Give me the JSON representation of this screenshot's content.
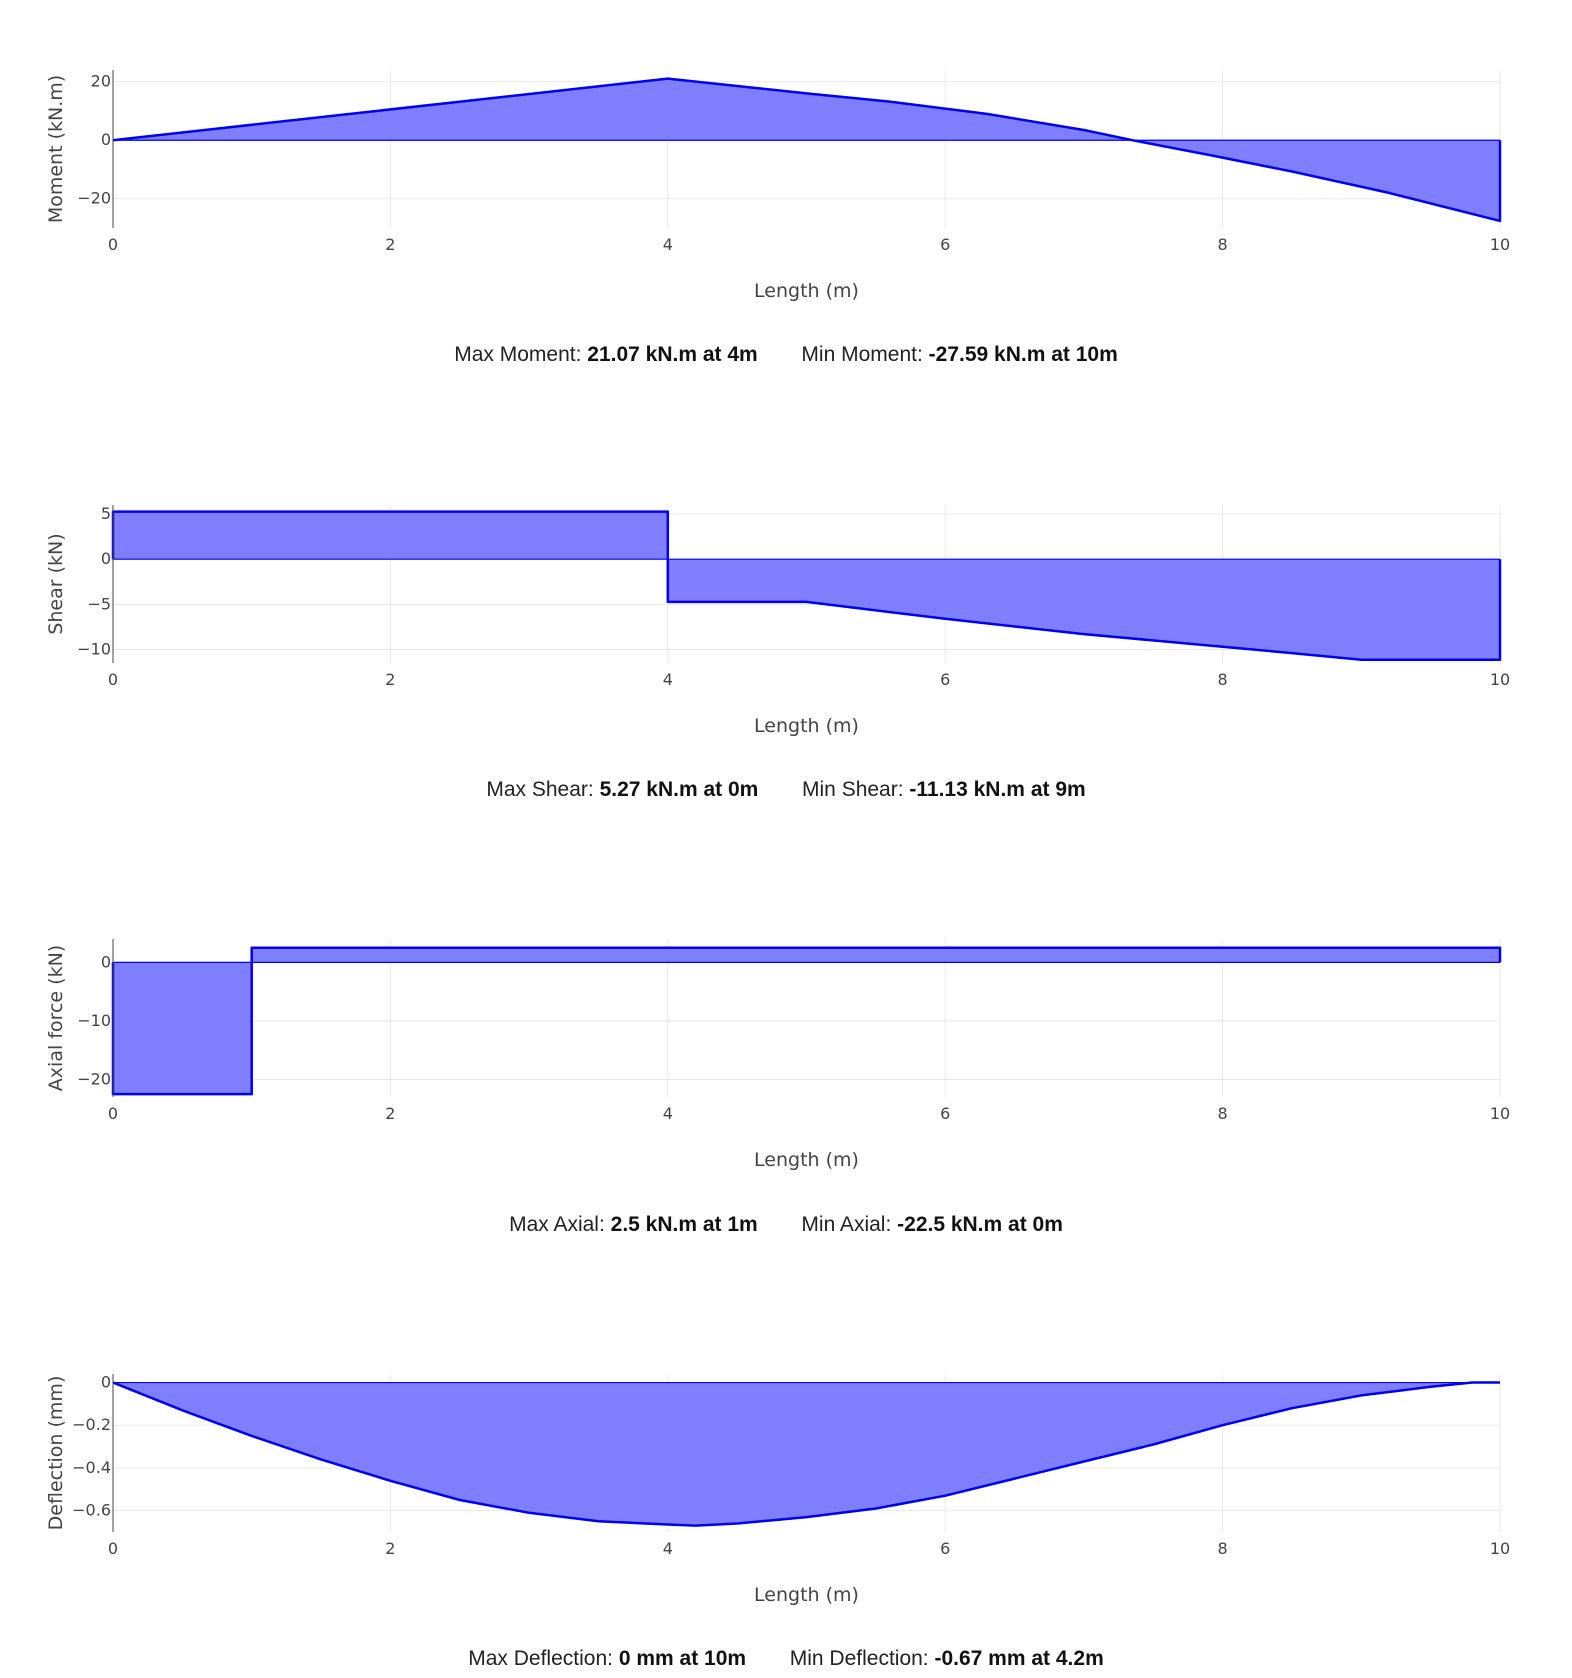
{
  "colors": {
    "fill": "#7f7ffe",
    "line": "#0000ee",
    "grid": "#e8e8e8",
    "axis": "#444444",
    "text": "#444444"
  },
  "chart_data": [
    {
      "type": "area",
      "xlabel": "Length (m)",
      "ylabel": "Moment (kN.m)",
      "xlim": [
        0,
        10
      ],
      "ylim": [
        -30,
        24
      ],
      "xticks": [
        0,
        2,
        4,
        6,
        8,
        10
      ],
      "yticks": [
        -20,
        0,
        20
      ],
      "grid": true,
      "x": [
        0,
        4,
        5,
        5.6,
        6.3,
        7,
        7.35,
        7.9,
        8.5,
        9.2,
        10
      ],
      "y": [
        0,
        21.07,
        16,
        13.2,
        9,
        3.5,
        0,
        -5,
        -10.7,
        -18,
        -27.59
      ],
      "summary": {
        "max_label": "Max Moment:",
        "max_value": "21.07 kN.m at 4m",
        "min_label": "Min Moment:",
        "min_value": "-27.59 kN.m at 10m"
      }
    },
    {
      "type": "area",
      "xlabel": "Length (m)",
      "ylabel": "Shear (kN)",
      "xlim": [
        0,
        10
      ],
      "ylim": [
        -11.5,
        6
      ],
      "xticks": [
        0,
        2,
        4,
        6,
        8,
        10
      ],
      "yticks": [
        -10,
        -5,
        0,
        5
      ],
      "grid": true,
      "x": [
        0,
        4,
        4,
        5,
        6,
        7,
        8,
        8.5,
        9,
        10
      ],
      "y": [
        5.27,
        5.27,
        -4.73,
        -4.73,
        -6.6,
        -8.3,
        -9.7,
        -10.4,
        -11.13,
        -11.13
      ],
      "summary": {
        "max_label": "Max Shear:",
        "max_value": "5.27 kN.m at 0m",
        "min_label": "Min Shear:",
        "min_value": "-11.13 kN.m at 9m"
      }
    },
    {
      "type": "area",
      "xlabel": "Length (m)",
      "ylabel": "Axial force (kN)",
      "xlim": [
        0,
        10
      ],
      "ylim": [
        -23,
        4
      ],
      "xticks": [
        0,
        2,
        4,
        6,
        8,
        10
      ],
      "yticks": [
        -20,
        -10,
        0
      ],
      "grid": true,
      "x": [
        0,
        1,
        1,
        10
      ],
      "y": [
        -22.5,
        -22.5,
        2.5,
        2.5
      ],
      "summary": {
        "max_label": "Max Axial:",
        "max_value": "2.5 kN.m at 1m",
        "min_label": "Min Axial:",
        "min_value": "-22.5 kN.m at 0m"
      }
    },
    {
      "type": "area",
      "xlabel": "Length (m)",
      "ylabel": "Deflection (mm)",
      "xlim": [
        0,
        10
      ],
      "ylim": [
        -0.7,
        0.04
      ],
      "xticks": [
        0,
        2,
        4,
        6,
        8,
        10
      ],
      "yticks": [
        -0.6,
        -0.4,
        -0.2,
        0
      ],
      "ytick_labels": [
        "−0.6",
        "−0.4",
        "−0.2",
        "0"
      ],
      "grid": true,
      "x": [
        0,
        0.5,
        1,
        1.5,
        2,
        2.5,
        3,
        3.5,
        4,
        4.2,
        4.5,
        5,
        5.5,
        6,
        6.5,
        7,
        7.5,
        8,
        8.5,
        9,
        9.5,
        9.8,
        10
      ],
      "y": [
        0,
        -0.13,
        -0.25,
        -0.36,
        -0.46,
        -0.55,
        -0.61,
        -0.65,
        -0.665,
        -0.67,
        -0.66,
        -0.63,
        -0.59,
        -0.53,
        -0.45,
        -0.37,
        -0.29,
        -0.2,
        -0.12,
        -0.06,
        -0.02,
        0,
        0
      ],
      "summary": {
        "max_label": "Max Deflection:",
        "max_value": "0 mm at 10m",
        "min_label": "Min Deflection:",
        "min_value": "-0.67 mm at 4.2m"
      }
    }
  ]
}
